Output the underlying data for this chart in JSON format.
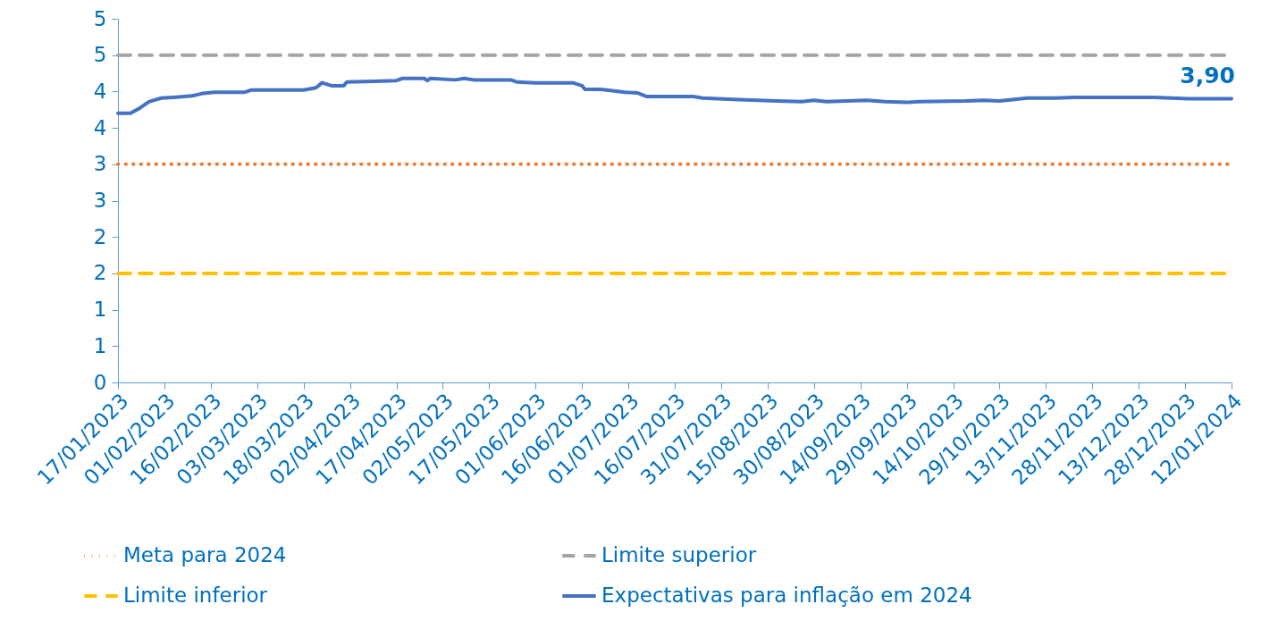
{
  "chart_data": {
    "type": "line",
    "ylim": [
      0,
      5
    ],
    "yticks": [
      {
        "value": 0,
        "label": "0"
      },
      {
        "value": 0.5,
        "label": "1"
      },
      {
        "value": 1,
        "label": "1"
      },
      {
        "value": 1.5,
        "label": "2"
      },
      {
        "value": 2,
        "label": "2"
      },
      {
        "value": 2.5,
        "label": "3"
      },
      {
        "value": 3,
        "label": "3"
      },
      {
        "value": 3.5,
        "label": "4"
      },
      {
        "value": 4,
        "label": "4"
      },
      {
        "value": 4.5,
        "label": "5"
      },
      {
        "value": 5,
        "label": "5"
      }
    ],
    "xlim": [
      "2023-01-17",
      "2024-01-12"
    ],
    "xticks": [
      {
        "value": "2023-01-17",
        "label": "17/01/2023"
      },
      {
        "value": "2023-02-01",
        "label": "01/02/2023"
      },
      {
        "value": "2023-02-16",
        "label": "16/02/2023"
      },
      {
        "value": "2023-03-03",
        "label": "03/03/2023"
      },
      {
        "value": "2023-03-18",
        "label": "18/03/2023"
      },
      {
        "value": "2023-04-02",
        "label": "02/04/2023"
      },
      {
        "value": "2023-04-17",
        "label": "17/04/2023"
      },
      {
        "value": "2023-05-02",
        "label": "02/05/2023"
      },
      {
        "value": "2023-05-17",
        "label": "17/05/2023"
      },
      {
        "value": "2023-06-01",
        "label": "01/06/2023"
      },
      {
        "value": "2023-06-16",
        "label": "16/06/2023"
      },
      {
        "value": "2023-07-01",
        "label": "01/07/2023"
      },
      {
        "value": "2023-07-16",
        "label": "16/07/2023"
      },
      {
        "value": "2023-07-31",
        "label": "31/07/2023"
      },
      {
        "value": "2023-08-15",
        "label": "15/08/2023"
      },
      {
        "value": "2023-08-30",
        "label": "30/08/2023"
      },
      {
        "value": "2023-09-14",
        "label": "14/09/2023"
      },
      {
        "value": "2023-09-29",
        "label": "29/09/2023"
      },
      {
        "value": "2023-10-14",
        "label": "14/10/2023"
      },
      {
        "value": "2023-10-29",
        "label": "29/10/2023"
      },
      {
        "value": "2023-11-13",
        "label": "13/11/2023"
      },
      {
        "value": "2023-11-28",
        "label": "28/11/2023"
      },
      {
        "value": "2023-12-13",
        "label": "13/12/2023"
      },
      {
        "value": "2023-12-28",
        "label": "28/12/2023"
      },
      {
        "value": "2024-01-12",
        "label": "12/01/2024"
      }
    ],
    "grid": false,
    "legend": "bottom",
    "series": [
      {
        "name": "Meta para 2024",
        "color": "#ed7d31",
        "line_style": "dotted",
        "x": [
          "2023-01-17",
          "2024-01-12"
        ],
        "values": [
          3,
          3
        ]
      },
      {
        "name": "Limite inferior",
        "color": "#ffc000",
        "line_style": "dashed",
        "x": [
          "2023-01-17",
          "2024-01-12"
        ],
        "values": [
          1.5,
          1.5
        ]
      },
      {
        "name": "Limite superior",
        "color": "#a5a5a5",
        "line_style": "dashed",
        "x": [
          "2023-01-17",
          "2024-01-12"
        ],
        "values": [
          4.5,
          4.5
        ]
      },
      {
        "name": "Expectativas para inflação em 2024",
        "color": "#4472c4",
        "line_style": "solid",
        "x": [
          "2023-01-17",
          "2023-01-21",
          "2023-01-24",
          "2023-01-27",
          "2023-01-31",
          "2023-02-04",
          "2023-02-10",
          "2023-02-13",
          "2023-02-17",
          "2023-02-27",
          "2023-03-01",
          "2023-03-18",
          "2023-03-22",
          "2023-03-24",
          "2023-03-27",
          "2023-03-31",
          "2023-04-01",
          "2023-04-10",
          "2023-04-17",
          "2023-04-19",
          "2023-04-26",
          "2023-04-27",
          "2023-04-28",
          "2023-05-06",
          "2023-05-09",
          "2023-05-12",
          "2023-05-24",
          "2023-05-26",
          "2023-06-01",
          "2023-06-13",
          "2023-06-16",
          "2023-06-17",
          "2023-06-22",
          "2023-06-24",
          "2023-06-30",
          "2023-07-04",
          "2023-07-07",
          "2023-07-22",
          "2023-07-25",
          "2023-08-04",
          "2023-08-18",
          "2023-08-26",
          "2023-08-30",
          "2023-09-03",
          "2023-09-16",
          "2023-09-22",
          "2023-09-29",
          "2023-10-03",
          "2023-10-18",
          "2023-10-24",
          "2023-10-29",
          "2023-11-07",
          "2023-11-16",
          "2023-11-22",
          "2023-11-30",
          "2023-12-18",
          "2023-12-29",
          "2024-01-12"
        ],
        "values": [
          3.7,
          3.7,
          3.77,
          3.86,
          3.91,
          3.92,
          3.94,
          3.97,
          3.99,
          3.99,
          4.02,
          4.02,
          4.05,
          4.12,
          4.08,
          4.08,
          4.13,
          4.14,
          4.15,
          4.18,
          4.18,
          4.15,
          4.18,
          4.16,
          4.18,
          4.16,
          4.16,
          4.13,
          4.12,
          4.12,
          4.08,
          4.03,
          4.03,
          4.02,
          3.99,
          3.98,
          3.93,
          3.93,
          3.91,
          3.89,
          3.87,
          3.86,
          3.88,
          3.86,
          3.88,
          3.86,
          3.85,
          3.86,
          3.87,
          3.88,
          3.87,
          3.91,
          3.91,
          3.92,
          3.92,
          3.92,
          3.9,
          3.9
        ],
        "value_labels": [
          null,
          null,
          null,
          null,
          null,
          null,
          null,
          null,
          null,
          null,
          null,
          null,
          null,
          null,
          null,
          null,
          null,
          null,
          null,
          null,
          null,
          null,
          null,
          null,
          null,
          null,
          null,
          null,
          null,
          null,
          null,
          null,
          null,
          null,
          null,
          null,
          null,
          null,
          null,
          null,
          null,
          null,
          null,
          null,
          null,
          null,
          null,
          null,
          null,
          null,
          null,
          null,
          null,
          null,
          null,
          null,
          null,
          "3,90"
        ]
      }
    ]
  }
}
